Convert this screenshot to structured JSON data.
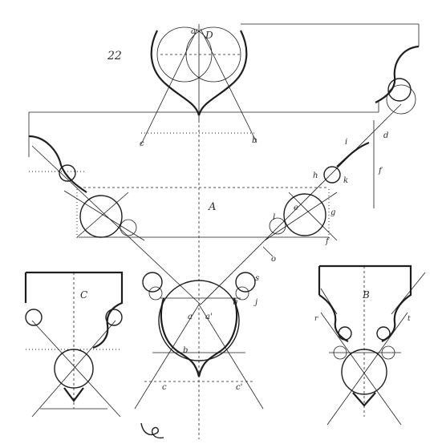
{
  "plate": {
    "number": "22",
    "figures": {
      "A": "A",
      "B": "B",
      "C": "C",
      "D": "D"
    },
    "letters": {
      "a_top": "a",
      "a_left": "a",
      "a_right": "a'",
      "b_center": "b",
      "b_top": "b",
      "c_left": "c",
      "c_bottom_left": "c",
      "c_bottom_right": "c'",
      "d": "d",
      "e": "e",
      "f_right": "f",
      "f_lower": "f",
      "g": "g",
      "h": "h",
      "i": "i",
      "j": "j",
      "k": "k",
      "l": "l",
      "o": "o",
      "q": "q",
      "r": "r",
      "s": "s",
      "t": "t"
    }
  }
}
